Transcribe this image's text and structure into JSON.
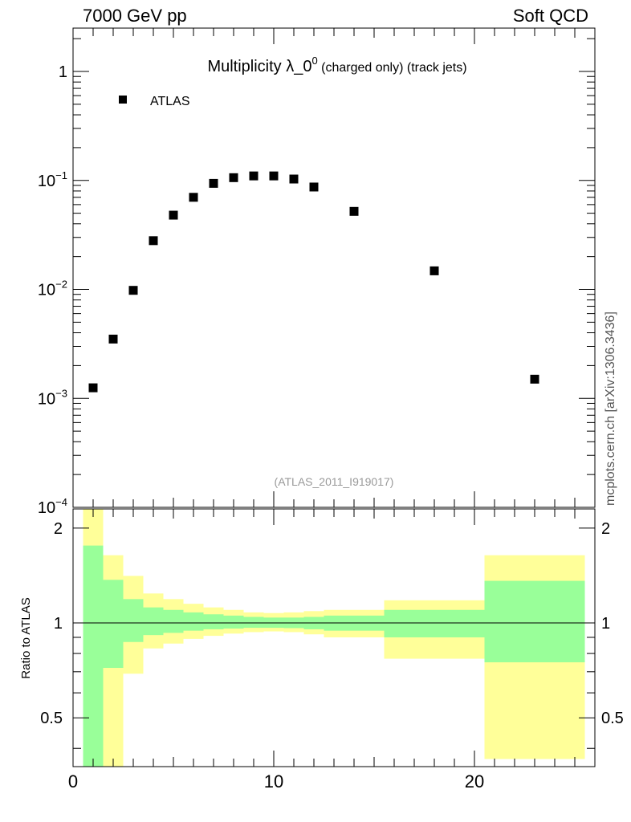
{
  "header": {
    "left": "7000 GeV pp",
    "right": "Soft QCD"
  },
  "side_label": "mcplots.cern.ch [arXiv:1306.3436]",
  "chart_data": [
    {
      "type": "scatter",
      "title_main": "Multiplicity λ_0",
      "title_sup": "0",
      "title_tail": " (charged only) (track jets)",
      "watermark": "(ATLAS_2011_I919017)",
      "legend": {
        "label": "ATLAS",
        "placement": "top-left"
      },
      "xlim": [
        0,
        26
      ],
      "ylim": [
        0.0001,
        2.5
      ],
      "yscale": "log",
      "y_ticks": [
        {
          "v": 1,
          "label": "1"
        },
        {
          "v": 0.1,
          "base": "10",
          "exp": "−1"
        },
        {
          "v": 0.01,
          "base": "10",
          "exp": "−2"
        },
        {
          "v": 0.001,
          "base": "10",
          "exp": "−3"
        },
        {
          "v": 0.0001,
          "base": "10",
          "exp": "−4"
        }
      ],
      "series": [
        {
          "name": "ATLAS",
          "x": [
            1,
            2,
            3,
            4,
            5,
            6,
            7,
            8,
            9,
            10,
            11,
            12,
            14,
            18,
            23
          ],
          "y": [
            0.00125,
            0.0035,
            0.0098,
            0.028,
            0.048,
            0.07,
            0.094,
            0.106,
            0.11,
            0.11,
            0.103,
            0.087,
            0.052,
            0.0148,
            0.0015
          ]
        }
      ]
    },
    {
      "type": "area",
      "ylabel": "Ratio to ATLAS",
      "xlim": [
        0,
        26
      ],
      "ylim": [
        0.35,
        2.3
      ],
      "yscale": "log",
      "x_ticks": [
        0,
        10,
        20
      ],
      "y_ticks": [
        {
          "v": 0.5,
          "label": "0.5"
        },
        {
          "v": 1,
          "label": "1"
        },
        {
          "v": 2,
          "label": "2"
        }
      ],
      "bins": [
        {
          "lo": 0.5,
          "hi": 1.5,
          "g_lo": 0.35,
          "g_hi": 1.76,
          "y_lo": 0.35,
          "y_hi": 2.3
        },
        {
          "lo": 1.5,
          "hi": 2.5,
          "g_lo": 0.72,
          "g_hi": 1.37,
          "y_lo": 0.35,
          "y_hi": 1.64
        },
        {
          "lo": 2.5,
          "hi": 3.5,
          "g_lo": 0.87,
          "g_hi": 1.19,
          "y_lo": 0.69,
          "y_hi": 1.41
        },
        {
          "lo": 3.5,
          "hi": 4.5,
          "g_lo": 0.915,
          "g_hi": 1.12,
          "y_lo": 0.83,
          "y_hi": 1.24
        },
        {
          "lo": 4.5,
          "hi": 5.5,
          "g_lo": 0.93,
          "g_hi": 1.1,
          "y_lo": 0.86,
          "y_hi": 1.19
        },
        {
          "lo": 5.5,
          "hi": 6.5,
          "g_lo": 0.945,
          "g_hi": 1.08,
          "y_lo": 0.89,
          "y_hi": 1.15
        },
        {
          "lo": 6.5,
          "hi": 7.5,
          "g_lo": 0.955,
          "g_hi": 1.065,
          "y_lo": 0.91,
          "y_hi": 1.12
        },
        {
          "lo": 7.5,
          "hi": 8.5,
          "g_lo": 0.96,
          "g_hi": 1.055,
          "y_lo": 0.925,
          "y_hi": 1.1
        },
        {
          "lo": 8.5,
          "hi": 9.5,
          "g_lo": 0.965,
          "g_hi": 1.045,
          "y_lo": 0.935,
          "y_hi": 1.08
        },
        {
          "lo": 9.5,
          "hi": 10.5,
          "g_lo": 0.965,
          "g_hi": 1.04,
          "y_lo": 0.94,
          "y_hi": 1.075
        },
        {
          "lo": 10.5,
          "hi": 11.5,
          "g_lo": 0.963,
          "g_hi": 1.04,
          "y_lo": 0.935,
          "y_hi": 1.08
        },
        {
          "lo": 11.5,
          "hi": 12.5,
          "g_lo": 0.955,
          "g_hi": 1.045,
          "y_lo": 0.92,
          "y_hi": 1.09
        },
        {
          "lo": 12.5,
          "hi": 15.5,
          "g_lo": 0.945,
          "g_hi": 1.055,
          "y_lo": 0.9,
          "y_hi": 1.1
        },
        {
          "lo": 15.5,
          "hi": 20.5,
          "g_lo": 0.9,
          "g_hi": 1.1,
          "y_lo": 0.77,
          "y_hi": 1.18
        },
        {
          "lo": 20.5,
          "hi": 25.5,
          "g_lo": 0.75,
          "g_hi": 1.36,
          "y_lo": 0.37,
          "y_hi": 1.64
        }
      ],
      "reference_line": 1
    }
  ],
  "colors": {
    "marker": "#000000",
    "green_band": "#99ff99",
    "yellow_band": "#ffff99",
    "axis": "#000000",
    "watermark": "#999999",
    "side_label": "#555555"
  }
}
